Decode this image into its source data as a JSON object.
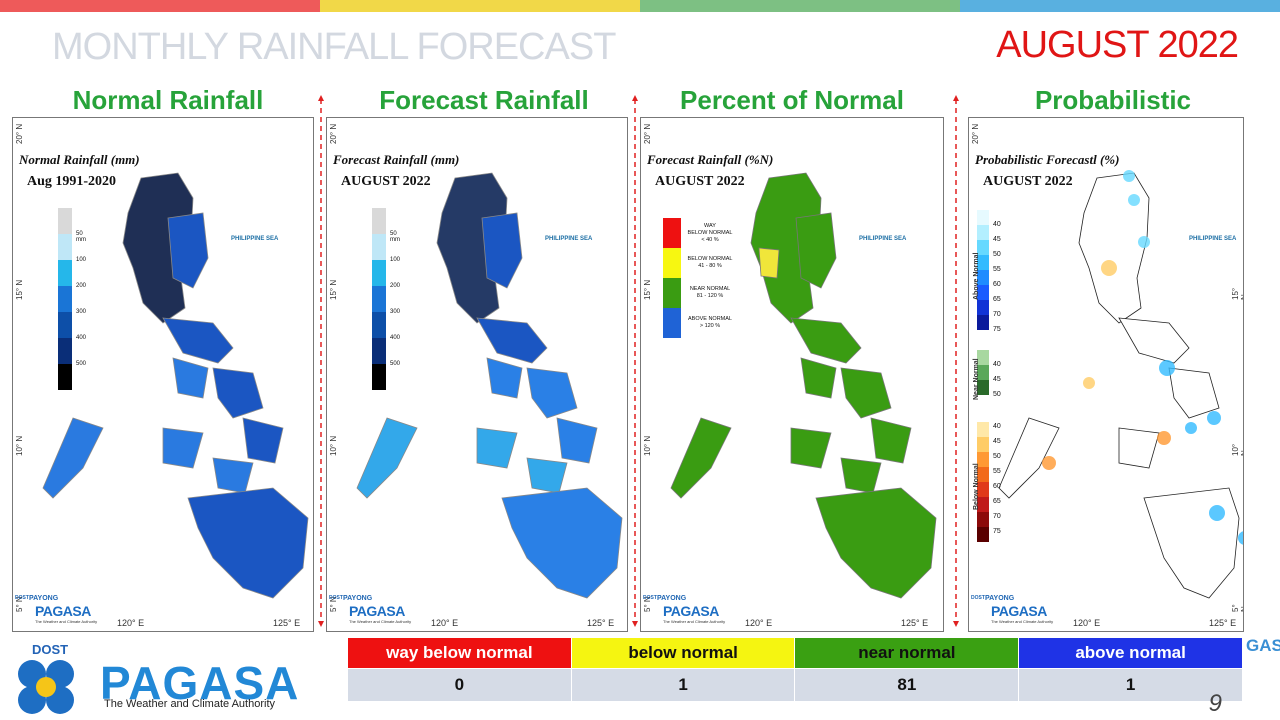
{
  "header": {
    "title": "MONTHLY RAINFALL FORECAST",
    "month": "AUGUST 2022",
    "bar_colors": [
      "#ee5a5a",
      "#f1d848",
      "#7dc083",
      "#59b0e0"
    ]
  },
  "columns": [
    {
      "heading": "Normal Rainfall",
      "map_title": "Normal Rainfall (mm)",
      "map_subtitle": "Aug 1991-2020"
    },
    {
      "heading": "Forecast Rainfall",
      "map_title": "Forecast Rainfall (mm)",
      "map_subtitle": "AUGUST 2022"
    },
    {
      "heading": "Percent of Normal",
      "map_title": "Forecast Rainfall (%N)",
      "map_subtitle": "AUGUST 2022"
    },
    {
      "heading": "Probabilistic",
      "map_title": "Probabilistic Forecastl (%)",
      "map_subtitle": "AUGUST 2022"
    }
  ],
  "map_common": {
    "sea_label": "PHILIPPINE SEA",
    "lat_labels": [
      "20° N",
      "15° N",
      "10° N",
      "5° N"
    ],
    "lon_labels": [
      "120° E",
      "125° E"
    ],
    "logo": {
      "dost": "DOST",
      "payong": "PAYONG",
      "pagasa": "PAGASA",
      "tagline": "The Weather and Climate Authority"
    }
  },
  "rainfall_legend": {
    "labels": [
      "50 mm",
      "100",
      "200",
      "300",
      "400",
      "500"
    ],
    "colors": [
      "#d9d9d9",
      "#bfe7f7",
      "#25b7ea",
      "#1a75d6",
      "#0d4fa8",
      "#0a2e78",
      "#000000"
    ]
  },
  "percent_legend": [
    {
      "line1": "WAY",
      "line2": "BELOW NORMAL",
      "line3": "< 40 %",
      "color": "#ee1111"
    },
    {
      "line1": "BELOW NORMAL",
      "line2": "41 - 80 %",
      "line3": "",
      "color": "#f7f711"
    },
    {
      "line1": "NEAR NORMAL",
      "line2": "81 - 120 %",
      "line3": "",
      "color": "#3a9c12"
    },
    {
      "line1": "ABOVE NORMAL",
      "line2": "> 120 %",
      "line3": "",
      "color": "#1f63d6"
    }
  ],
  "prob_legend": {
    "above": {
      "label": "Above Normal",
      "values": [
        "40",
        "45",
        "50",
        "55",
        "60",
        "65",
        "70",
        "75"
      ],
      "colors": [
        "#e6faff",
        "#b3efff",
        "#66d9ff",
        "#33bbff",
        "#1f8cff",
        "#1a5cff",
        "#1133d6",
        "#0a1a9c"
      ]
    },
    "near": {
      "label": "Near Normal",
      "values": [
        "40",
        "45",
        "50"
      ],
      "colors": [
        "#a8d8a0",
        "#5aa85a",
        "#2a6a2a"
      ]
    },
    "below": {
      "label": "Below Normal",
      "values": [
        "40",
        "45",
        "50",
        "55",
        "60",
        "65",
        "70",
        "75"
      ],
      "colors": [
        "#ffe8a8",
        "#ffcc66",
        "#ff9933",
        "#f26a1a",
        "#e03a1a",
        "#c01a1a",
        "#8c0a0a",
        "#5a0000"
      ]
    }
  },
  "summary": {
    "categories": [
      {
        "label": "way below normal",
        "count": "0",
        "color": "#ee1111",
        "text_color": "#ffffff"
      },
      {
        "label": "below normal",
        "count": "1",
        "color": "#f5f511",
        "text_color": "#111111"
      },
      {
        "label": "near normal",
        "count": "81",
        "color": "#3aa012",
        "text_color": "#111111"
      },
      {
        "label": "above normal",
        "count": "1",
        "color": "#1f33e6",
        "text_color": "#ffffff"
      }
    ]
  },
  "footer": {
    "dost": "DOST",
    "pagasa": "PAGASA",
    "tagline": "The Weather and Climate Authority",
    "peek_text": "GASA",
    "page_number": "9"
  }
}
